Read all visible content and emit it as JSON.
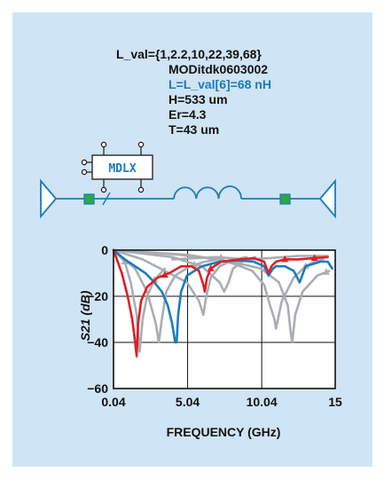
{
  "parameters": {
    "sweep": "L_val={1,2.2,10,22,39,68}",
    "model": "MODitdk0603002",
    "inductance": "L=L_val[6]=68 nH",
    "height": "H=533 um",
    "er": "Er=4.3",
    "thickness": "T=43 um"
  },
  "component_label": "MDLX",
  "colors": {
    "panel": "#cfe4f4",
    "wire": "#1b7bbf",
    "port": "#2aa84a",
    "highlight_text": "#1b7bbf"
  },
  "chart_data": {
    "type": "line",
    "title": "",
    "xlabel": "FREQUENCY (GHz)",
    "ylabel": "S21 (dB)",
    "xlim": [
      0.04,
      15
    ],
    "ylim": [
      -60,
      0
    ],
    "xticks": [
      0.04,
      5.04,
      10.04,
      15
    ],
    "xtick_labels": [
      "0.04",
      "5.04",
      "10.04",
      "15"
    ],
    "yticks": [
      0,
      -20,
      -40,
      -60
    ],
    "ytick_labels": [
      "0",
      "−20",
      "−40",
      "−60"
    ],
    "grid": true,
    "series": [
      {
        "color": "#dd1f26",
        "marker": "triangle",
        "x": [
          0.04,
          0.6,
          1.0,
          1.3,
          1.5,
          1.6,
          1.7,
          1.9,
          2.3,
          3.0,
          3.8,
          4.6,
          5.3,
          5.8,
          6.1,
          6.2,
          6.35,
          6.6,
          7.3,
          8.5,
          9.5,
          10.2,
          10.5,
          10.7,
          11.0,
          11.6,
          12.5,
          13.5,
          14.5
        ],
        "y": [
          0,
          -10,
          -20,
          -30,
          -40,
          -46,
          -32,
          -22,
          -16,
          -12,
          -10,
          -7,
          -7,
          -9,
          -15,
          -18,
          -12,
          -8,
          -5,
          -4,
          -3.5,
          -5,
          -10,
          -7,
          -5,
          -4,
          -4,
          -3.5,
          -3
        ],
        "markers_at": [
          3.5,
          6.6,
          11.6,
          13.6
        ]
      },
      {
        "color": "#1b7bbf",
        "marker": "none",
        "x": [
          0.04,
          0.8,
          1.5,
          2.2,
          2.8,
          3.3,
          3.7,
          4.0,
          4.2,
          4.3,
          4.4,
          4.6,
          5.0,
          6.0,
          7.2,
          8.5,
          9.5,
          10.2,
          10.5,
          10.8,
          11.0,
          11.6,
          12.2,
          12.6,
          13.0,
          14.0,
          14.5,
          14.8
        ],
        "y": [
          0,
          -4,
          -7,
          -10,
          -14,
          -18,
          -24,
          -32,
          -40,
          -40,
          -28,
          -18,
          -11,
          -7,
          -5,
          -4.5,
          -5,
          -7,
          -11,
          -8,
          -7,
          -7,
          -9,
          -14,
          -7,
          -5,
          -5,
          -8
        ],
        "markers_at": []
      },
      {
        "color": "#a9adb3",
        "marker": "triangle",
        "x": [
          0.04,
          0.8,
          1.2,
          1.6,
          1.8,
          2.0,
          2.3,
          2.8,
          3.5
        ],
        "y": [
          0,
          -5,
          -14,
          -28,
          -44,
          -30,
          -20,
          -13,
          -8
        ],
        "markers_at": [
          0.8,
          2.8
        ]
      },
      {
        "color": "#a9adb3",
        "marker": "triangle",
        "x": [
          0.04,
          1.5,
          2.3,
          2.9,
          3.1,
          3.3,
          3.6,
          4.2,
          5.2,
          6.2,
          7.2
        ],
        "y": [
          0,
          -8,
          -18,
          -32,
          -40,
          -30,
          -18,
          -11,
          -7,
          -5,
          -4
        ],
        "markers_at": [
          5.5
        ]
      },
      {
        "color": "#a9adb3",
        "marker": "triangle",
        "x": [
          0.04,
          2.0,
          3.5,
          5.0,
          5.8,
          6.1,
          6.3,
          6.6,
          7.2,
          8.0,
          9.0
        ],
        "y": [
          0,
          -4,
          -9,
          -14,
          -22,
          -28,
          -20,
          -12,
          -7,
          -4.5,
          -3
        ],
        "markers_at": [
          8.0
        ]
      },
      {
        "color": "#a9adb3",
        "marker": "triangle",
        "x": [
          0.04,
          4.0,
          6.0,
          7.2,
          7.5,
          7.8,
          8.1,
          8.7,
          9.6
        ],
        "y": [
          0,
          -3,
          -7,
          -14,
          -18,
          -14,
          -8,
          -5,
          -3
        ],
        "markers_at": [
          8.5
        ]
      },
      {
        "color": "#a9adb3",
        "marker": "triangle",
        "x": [
          0.04,
          4.5,
          7.0,
          8.2,
          9.4,
          10.2,
          10.6,
          10.9,
          11.0,
          11.4,
          12.2,
          13.0,
          13.6,
          14.2
        ],
        "y": [
          0,
          -2,
          -4,
          -6,
          -9,
          -15,
          -24,
          -30,
          -34,
          -22,
          -12,
          -7,
          -5,
          -4
        ],
        "markers_at": [
          13.0
        ]
      },
      {
        "color": "#a9adb3",
        "marker": "triangle",
        "x": [
          0.04,
          5.0,
          8.0,
          10.0,
          11.2,
          11.8,
          12.0,
          12.1,
          12.3,
          12.8,
          13.8,
          14.6
        ],
        "y": [
          0,
          -2,
          -5,
          -8,
          -14,
          -24,
          -36,
          -40,
          -28,
          -18,
          -11,
          -9
        ],
        "markers_at": [
          14.4
        ]
      },
      {
        "color": "#a9adb3",
        "marker": "triangle",
        "x": [
          4.0,
          7.0,
          9.0,
          10.5,
          11.5,
          12.5,
          13.5,
          14.5
        ],
        "y": [
          -4,
          -3,
          -4,
          -3.5,
          -3,
          -2.5,
          -2.5,
          -2.5
        ],
        "markers_at": [
          7.3
        ]
      }
    ]
  }
}
